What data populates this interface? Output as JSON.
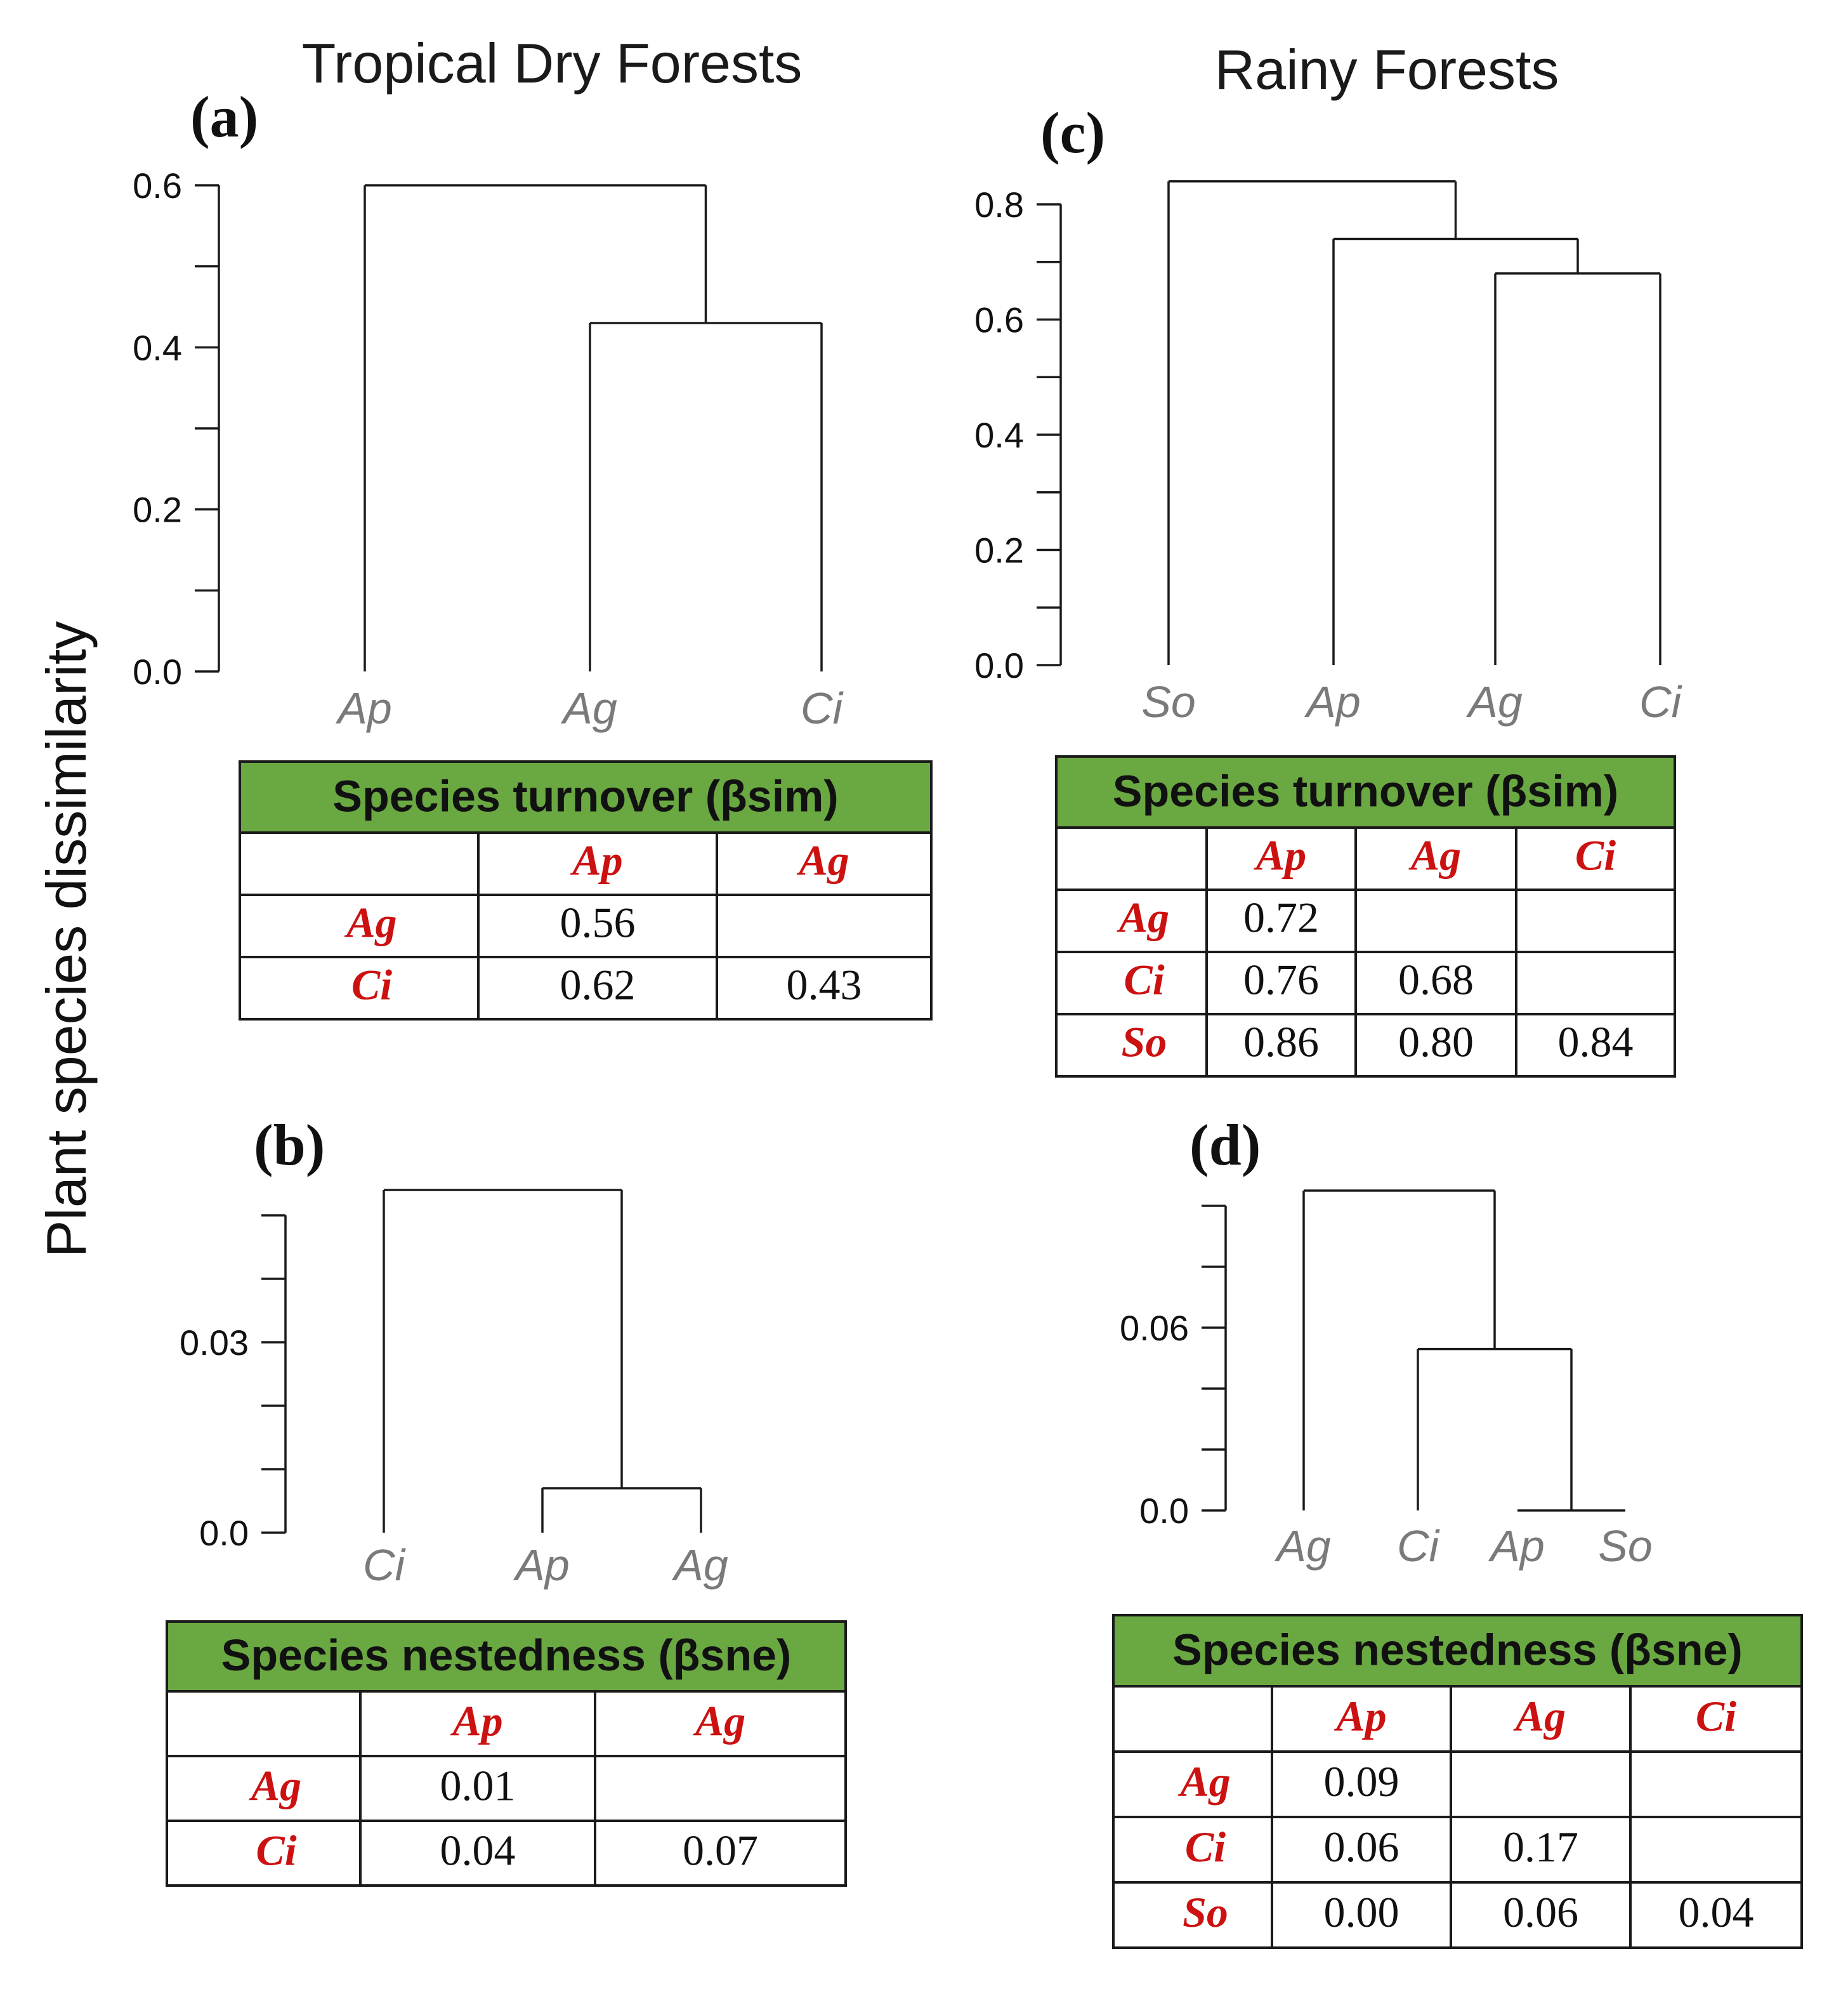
{
  "figure": {
    "ylabel": "Plant species dissimilarity",
    "column_titles": {
      "left": "Tropical Dry Forests",
      "right": "Rainy Forests"
    }
  },
  "chart_data": [
    {
      "type": "dendrogram",
      "panel": "(a)",
      "ylim": [
        0,
        0.6
      ],
      "ticks": [
        "0.0",
        "0.2",
        "0.4",
        "0.6"
      ],
      "tick_values": [
        0,
        0.2,
        0.4,
        0.6
      ],
      "minor_ticks": [
        0.1,
        0.3,
        0.5
      ],
      "leaves": [
        "Ap",
        "Ag",
        "Ci"
      ],
      "merges": [
        {
          "a": 1,
          "b": 2,
          "height": 0.43
        },
        {
          "a": 0,
          "b": 3,
          "height": 0.6
        }
      ],
      "table": {
        "title": "Species turnover (βsim)",
        "columns": [
          "Ap",
          "Ag"
        ],
        "rows": [
          {
            "label": "Ag",
            "values": [
              "0.56",
              ""
            ]
          },
          {
            "label": "Ci",
            "values": [
              "0.62",
              "0.43"
            ]
          }
        ]
      }
    },
    {
      "type": "dendrogram",
      "panel": "(b)",
      "ylim": [
        0,
        0.05
      ],
      "ticks": [
        "0.0",
        "0.03"
      ],
      "tick_values": [
        0,
        0.03
      ],
      "minor_ticks": [
        0.01,
        0.02,
        0.04,
        0.05
      ],
      "leaves": [
        "Ci",
        "Ap",
        "Ag"
      ],
      "merges": [
        {
          "a": 1,
          "b": 2,
          "height": 0.007
        },
        {
          "a": 0,
          "b": 3,
          "height": 0.054
        }
      ],
      "table": {
        "title": "Species nestedness (βsne)",
        "columns": [
          "Ap",
          "Ag"
        ],
        "rows": [
          {
            "label": "Ag",
            "values": [
              "0.01",
              ""
            ]
          },
          {
            "label": "Ci",
            "values": [
              "0.04",
              "0.07"
            ]
          }
        ]
      }
    },
    {
      "type": "dendrogram",
      "panel": "(c)",
      "ylim": [
        0,
        0.8
      ],
      "ticks": [
        "0.0",
        "0.2",
        "0.4",
        "0.6",
        "0.8"
      ],
      "tick_values": [
        0,
        0.2,
        0.4,
        0.6,
        0.8
      ],
      "minor_ticks": [
        0.1,
        0.3,
        0.5,
        0.7
      ],
      "leaves": [
        "So",
        "Ap",
        "Ag",
        "Ci"
      ],
      "merges": [
        {
          "a": 2,
          "b": 3,
          "height": 0.68
        },
        {
          "a": 1,
          "b": 4,
          "height": 0.74
        },
        {
          "a": 0,
          "b": 5,
          "height": 0.84
        }
      ],
      "table": {
        "title": "Species turnover (βsim)",
        "columns": [
          "Ap",
          "Ag",
          "Ci"
        ],
        "rows": [
          {
            "label": "Ag",
            "values": [
              "0.72",
              "",
              ""
            ]
          },
          {
            "label": "Ci",
            "values": [
              "0.76",
              "0.68",
              ""
            ]
          },
          {
            "label": "So",
            "values": [
              "0.86",
              "0.80",
              "0.84"
            ]
          }
        ]
      }
    },
    {
      "type": "dendrogram",
      "panel": "(d)",
      "ylim": [
        0,
        0.1
      ],
      "ticks": [
        "0.0",
        "0.06"
      ],
      "tick_values": [
        0,
        0.06
      ],
      "minor_ticks": [
        0.02,
        0.04,
        0.08,
        0.1
      ],
      "leaves": [
        "Ag",
        "Ci",
        "Ap",
        "So"
      ],
      "merges": [
        {
          "a": 2,
          "b": 3,
          "height": 0.0
        },
        {
          "a": 1,
          "b": 4,
          "height": 0.053
        },
        {
          "a": 0,
          "b": 5,
          "height": 0.105
        }
      ],
      "table": {
        "title": "Species nestedness (βsne)",
        "columns": [
          "Ap",
          "Ag",
          "Ci"
        ],
        "rows": [
          {
            "label": "Ag",
            "values": [
              "0.09",
              "",
              ""
            ]
          },
          {
            "label": "Ci",
            "values": [
              "0.06",
              "0.17",
              ""
            ]
          },
          {
            "label": "So",
            "values": [
              "0.00",
              "0.06",
              "0.04"
            ]
          }
        ]
      }
    }
  ]
}
